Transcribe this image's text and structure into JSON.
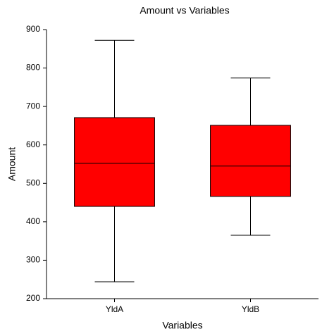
{
  "chart_data": {
    "type": "box",
    "title": "Amount vs Variables",
    "x_label": "Variables",
    "y_label": "Amount",
    "categories": [
      "YldA",
      "YldB"
    ],
    "min": [
      244,
      365
    ],
    "q1": [
      440,
      466
    ],
    "median": [
      552,
      545
    ],
    "q3": [
      671,
      651
    ],
    "max": [
      872,
      774
    ],
    "color": "#ff0000",
    "ylim": [
      200,
      900
    ],
    "yticks": [
      200,
      300,
      400,
      500,
      600,
      700,
      800,
      900
    ],
    "grid": false
  }
}
